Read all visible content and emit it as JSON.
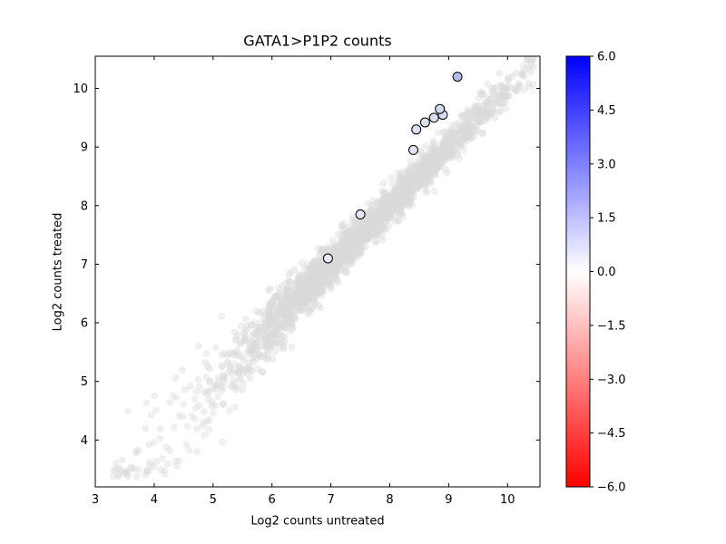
{
  "chart_data": {
    "type": "scatter",
    "title": "GATA1>P1P2 counts",
    "xlabel": "Log2 counts untreated",
    "ylabel": "Log2 counts treated",
    "xlim": [
      3.0,
      10.55
    ],
    "ylim": [
      3.2,
      10.55
    ],
    "x_ticks": [
      3,
      4,
      5,
      6,
      7,
      8,
      9,
      10
    ],
    "y_ticks": [
      4,
      5,
      6,
      7,
      8,
      9,
      10
    ],
    "grid": false,
    "legend": null,
    "background_cloud": {
      "description": "dense cloud of unhighlighted genes along the diagonal y ~ x, light gray, semi-transparent",
      "count": 2600,
      "seed": 42,
      "x_components": [
        {
          "weight": 0.58,
          "type": "normal",
          "mean": 6.9,
          "sd": 0.85
        },
        {
          "weight": 0.36,
          "type": "normal",
          "mean": 8.6,
          "sd": 0.85
        },
        {
          "weight": 0.06,
          "type": "uniform",
          "min": 3.3,
          "max": 6.6
        }
      ],
      "x_min": 3.25,
      "x_max": 10.45,
      "noise_sd_base": 0.16,
      "noise_sd_lowx_boost": 0.1,
      "low_x_droop": 0.1,
      "color": "#d9d9d9",
      "opacity": 0.4,
      "radius": 4
    },
    "highlighted_points": [
      {
        "x": 6.95,
        "y": 7.1,
        "color": "#e8eaf6"
      },
      {
        "x": 7.5,
        "y": 7.85,
        "color": "#e4e7f4"
      },
      {
        "x": 8.4,
        "y": 8.95,
        "color": "#dfe3f2"
      },
      {
        "x": 8.45,
        "y": 9.3,
        "color": "#dce1f1"
      },
      {
        "x": 8.6,
        "y": 9.42,
        "color": "#dce1f1"
      },
      {
        "x": 8.75,
        "y": 9.5,
        "color": "#d8def0"
      },
      {
        "x": 8.9,
        "y": 9.55,
        "color": "#d8def0"
      },
      {
        "x": 8.85,
        "y": 9.65,
        "color": "#d4daee"
      },
      {
        "x": 9.15,
        "y": 10.2,
        "color": "#b4bce4"
      }
    ],
    "colorbar": {
      "min": -6.0,
      "max": 6.0,
      "ticks": [
        6.0,
        4.5,
        3.0,
        1.5,
        0.0,
        -1.5,
        -3.0,
        -4.5,
        -6.0
      ],
      "tick_labels": [
        "6.0",
        "4.5",
        "3.0",
        "1.5",
        "0.0",
        "−1.5",
        "−3.0",
        "−4.5",
        "−6.0"
      ],
      "top_color": "#0000ff",
      "mid_color": "#ffffff",
      "bottom_color": "#ff0000"
    }
  }
}
